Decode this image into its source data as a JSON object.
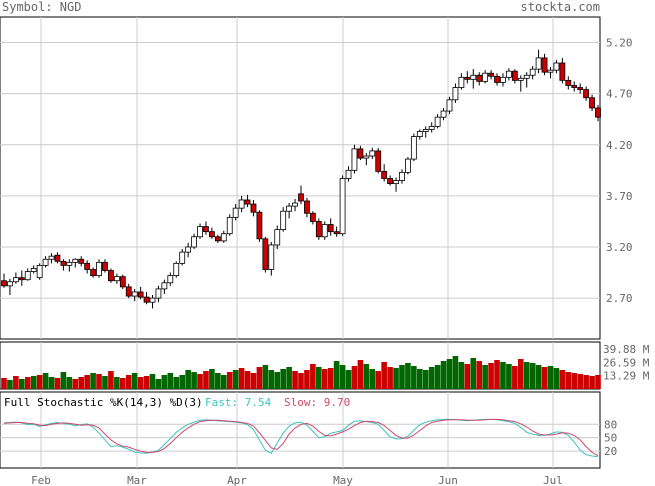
{
  "header": {
    "symbol_label": "Symbol: NGD",
    "site": "stockta.com"
  },
  "chart_data": [
    {
      "type": "candlestick",
      "title": "Symbol: NGD",
      "ylim": [
        2.3,
        5.45
      ],
      "y_ticks": [
        2.7,
        3.2,
        3.7,
        4.2,
        4.7,
        5.2
      ],
      "y_tick_labels": [
        "2.70",
        "3.20",
        "3.70",
        "4.20",
        "4.70",
        "5.20"
      ],
      "x_labels": [
        "Feb",
        "Mar",
        "Apr",
        "May",
        "Jun",
        "Jul"
      ],
      "ohlc": [
        [
          2.87,
          2.94,
          2.8,
          2.82
        ],
        [
          2.82,
          2.89,
          2.73,
          2.86
        ],
        [
          2.86,
          2.95,
          2.84,
          2.9
        ],
        [
          2.9,
          2.97,
          2.82,
          2.88
        ],
        [
          2.88,
          2.99,
          2.87,
          2.96
        ],
        [
          2.96,
          3.02,
          2.94,
          2.99
        ],
        [
          2.9,
          3.04,
          2.88,
          3.02
        ],
        [
          3.02,
          3.11,
          3.0,
          3.08
        ],
        [
          3.08,
          3.14,
          3.04,
          3.11
        ],
        [
          3.12,
          3.15,
          3.04,
          3.06
        ],
        [
          3.06,
          3.08,
          2.97,
          3.02
        ],
        [
          3.02,
          3.08,
          2.96,
          3.05
        ],
        [
          3.05,
          3.09,
          3.0,
          3.08
        ],
        [
          3.08,
          3.11,
          3.01,
          3.04
        ],
        [
          3.04,
          3.07,
          2.94,
          2.98
        ],
        [
          2.98,
          3.0,
          2.9,
          2.92
        ],
        [
          2.92,
          3.08,
          2.9,
          3.05
        ],
        [
          3.05,
          3.08,
          2.95,
          2.97
        ],
        [
          2.97,
          2.99,
          2.85,
          2.87
        ],
        [
          2.87,
          2.94,
          2.84,
          2.91
        ],
        [
          2.91,
          2.93,
          2.79,
          2.81
        ],
        [
          2.81,
          2.84,
          2.7,
          2.72
        ],
        [
          2.72,
          2.79,
          2.67,
          2.76
        ],
        [
          2.76,
          2.81,
          2.69,
          2.71
        ],
        [
          2.71,
          2.76,
          2.64,
          2.66
        ],
        [
          2.66,
          2.73,
          2.6,
          2.7
        ],
        [
          2.7,
          2.82,
          2.66,
          2.79
        ],
        [
          2.79,
          2.88,
          2.74,
          2.85
        ],
        [
          2.85,
          2.95,
          2.82,
          2.92
        ],
        [
          2.92,
          3.06,
          2.9,
          3.04
        ],
        [
          3.04,
          3.18,
          3.02,
          3.15
        ],
        [
          3.15,
          3.24,
          3.1,
          3.2
        ],
        [
          3.2,
          3.33,
          3.18,
          3.3
        ],
        [
          3.3,
          3.43,
          3.28,
          3.4
        ],
        [
          3.4,
          3.45,
          3.32,
          3.35
        ],
        [
          3.35,
          3.39,
          3.28,
          3.3
        ],
        [
          3.3,
          3.32,
          3.24,
          3.26
        ],
        [
          3.26,
          3.36,
          3.24,
          3.33
        ],
        [
          3.33,
          3.52,
          3.31,
          3.49
        ],
        [
          3.49,
          3.62,
          3.46,
          3.58
        ],
        [
          3.58,
          3.7,
          3.54,
          3.66
        ],
        [
          3.66,
          3.71,
          3.59,
          3.62
        ],
        [
          3.62,
          3.66,
          3.5,
          3.54
        ],
        [
          3.54,
          3.56,
          3.25,
          3.28
        ],
        [
          3.28,
          3.3,
          2.95,
          2.98
        ],
        [
          2.98,
          3.25,
          2.92,
          3.22
        ],
        [
          3.22,
          3.41,
          3.18,
          3.37
        ],
        [
          3.37,
          3.59,
          3.35,
          3.55
        ],
        [
          3.55,
          3.63,
          3.48,
          3.6
        ],
        [
          3.6,
          3.67,
          3.55,
          3.63
        ],
        [
          3.72,
          3.8,
          3.62,
          3.65
        ],
        [
          3.65,
          3.68,
          3.49,
          3.53
        ],
        [
          3.53,
          3.55,
          3.42,
          3.45
        ],
        [
          3.45,
          3.48,
          3.27,
          3.3
        ],
        [
          3.3,
          3.45,
          3.27,
          3.42
        ],
        [
          3.42,
          3.48,
          3.31,
          3.35
        ],
        [
          3.35,
          3.4,
          3.3,
          3.33
        ],
        [
          3.33,
          3.9,
          3.31,
          3.87
        ],
        [
          3.87,
          3.99,
          3.84,
          3.95
        ],
        [
          3.95,
          4.2,
          3.92,
          4.16
        ],
        [
          4.16,
          4.19,
          4.05,
          4.07
        ],
        [
          4.07,
          4.12,
          4.0,
          4.09
        ],
        [
          4.09,
          4.17,
          4.06,
          4.14
        ],
        [
          4.14,
          4.17,
          3.92,
          3.94
        ],
        [
          3.94,
          4.01,
          3.84,
          3.87
        ],
        [
          3.87,
          3.9,
          3.8,
          3.82
        ],
        [
          3.82,
          3.88,
          3.74,
          3.85
        ],
        [
          3.85,
          3.96,
          3.82,
          3.93
        ],
        [
          3.93,
          4.08,
          3.91,
          4.06
        ],
        [
          4.06,
          4.31,
          4.04,
          4.28
        ],
        [
          4.28,
          4.35,
          4.25,
          4.33
        ],
        [
          4.33,
          4.38,
          4.27,
          4.35
        ],
        [
          4.35,
          4.42,
          4.32,
          4.38
        ],
        [
          4.38,
          4.5,
          4.36,
          4.47
        ],
        [
          4.47,
          4.56,
          4.44,
          4.53
        ],
        [
          4.53,
          4.67,
          4.5,
          4.64
        ],
        [
          4.64,
          4.8,
          4.61,
          4.76
        ],
        [
          4.76,
          4.9,
          4.74,
          4.86
        ],
        [
          4.86,
          4.92,
          4.8,
          4.84
        ],
        [
          4.84,
          4.94,
          4.75,
          4.88
        ],
        [
          4.88,
          4.91,
          4.78,
          4.82
        ],
        [
          4.82,
          4.93,
          4.8,
          4.9
        ],
        [
          4.9,
          4.93,
          4.84,
          4.87
        ],
        [
          4.87,
          4.9,
          4.78,
          4.81
        ],
        [
          4.81,
          4.9,
          4.77,
          4.86
        ],
        [
          4.86,
          4.95,
          4.83,
          4.92
        ],
        [
          4.92,
          4.94,
          4.8,
          4.83
        ],
        [
          4.83,
          4.88,
          4.72,
          4.85
        ],
        [
          4.85,
          4.91,
          4.76,
          4.88
        ],
        [
          4.88,
          4.97,
          4.84,
          4.94
        ],
        [
          4.94,
          5.13,
          4.9,
          5.05
        ],
        [
          5.05,
          5.09,
          4.88,
          4.91
        ],
        [
          4.91,
          4.96,
          4.85,
          4.93
        ],
        [
          4.93,
          5.03,
          4.9,
          5.0
        ],
        [
          5.0,
          5.05,
          4.8,
          4.83
        ],
        [
          4.83,
          4.87,
          4.74,
          4.78
        ],
        [
          4.78,
          4.82,
          4.72,
          4.76
        ],
        [
          4.76,
          4.8,
          4.7,
          4.74
        ],
        [
          4.74,
          4.77,
          4.63,
          4.66
        ],
        [
          4.66,
          4.69,
          4.53,
          4.56
        ],
        [
          4.56,
          4.59,
          4.43,
          4.47
        ]
      ]
    },
    {
      "type": "bar",
      "y_tick_labels": [
        "39.88 M",
        "26.59 M",
        "13.29 M"
      ],
      "y_ticks": [
        39.88,
        26.59,
        13.29
      ],
      "ylim": [
        0,
        47
      ],
      "values": [
        11,
        9,
        13,
        10,
        12,
        13,
        14,
        16,
        12,
        11,
        17,
        12,
        10,
        12,
        14,
        16,
        15,
        13,
        18,
        12,
        11,
        14,
        16,
        12,
        13,
        15,
        10,
        14,
        16,
        12,
        14,
        19,
        17,
        15,
        18,
        20,
        16,
        14,
        17,
        19,
        21,
        18,
        16,
        22,
        24,
        19,
        17,
        20,
        22,
        18,
        16,
        19,
        25,
        22,
        20,
        21,
        28,
        24,
        19,
        23,
        29,
        25,
        20,
        18,
        27,
        22,
        21,
        24,
        26,
        23,
        20,
        19,
        22,
        24,
        28,
        30,
        33,
        27,
        25,
        31,
        28,
        24,
        26,
        29,
        27,
        25,
        23,
        30,
        27,
        26,
        24,
        22,
        23,
        21,
        19,
        17,
        16,
        15,
        14,
        13,
        14
      ],
      "colors": [
        "r",
        "g",
        "r",
        "g",
        "r",
        "g",
        "r",
        "g",
        "g",
        "r",
        "g",
        "g",
        "r",
        "r",
        "r",
        "g",
        "r",
        "g",
        "r",
        "g",
        "r",
        "r",
        "g",
        "r",
        "r",
        "g",
        "g",
        "g",
        "g",
        "g",
        "g",
        "g",
        "g",
        "r",
        "r",
        "g",
        "g",
        "g",
        "r",
        "g",
        "r",
        "r",
        "r",
        "r",
        "g",
        "g",
        "g",
        "g",
        "g",
        "r",
        "r",
        "r",
        "r",
        "g",
        "r",
        "r",
        "g",
        "g",
        "g",
        "r",
        "r",
        "g",
        "g",
        "r",
        "r",
        "r",
        "g",
        "g",
        "g",
        "g",
        "g",
        "g",
        "g",
        "g",
        "g",
        "g",
        "g",
        "g",
        "r",
        "g",
        "r",
        "g",
        "r",
        "r",
        "g",
        "g",
        "r",
        "r",
        "g",
        "g",
        "g",
        "r",
        "g",
        "g",
        "r",
        "r",
        "r",
        "r",
        "r",
        "r",
        "r"
      ]
    },
    {
      "type": "line",
      "title": "Full Stochastic %K(14,3) %D(3)",
      "fast_label": "Fast: 7.54",
      "slow_label": "Slow: 9.70",
      "ylim": [
        0,
        100
      ],
      "y_ticks": [
        80,
        50,
        20
      ],
      "y_tick_labels": [
        "80",
        "50",
        "20"
      ],
      "series": [
        {
          "color": "#3cc3c3",
          "values": [
            83,
            84,
            85,
            83,
            79,
            80,
            75,
            79,
            82,
            84,
            82,
            80,
            77,
            79,
            81,
            74,
            60,
            45,
            30,
            32,
            29,
            24,
            18,
            16,
            15,
            18,
            22,
            35,
            48,
            62,
            72,
            80,
            85,
            89,
            90,
            89,
            88,
            87,
            86,
            85,
            83,
            79,
            68,
            45,
            22,
            15,
            38,
            60,
            76,
            83,
            85,
            78,
            64,
            50,
            52,
            60,
            63,
            66,
            78,
            87,
            88,
            86,
            84,
            80,
            66,
            52,
            47,
            48,
            53,
            67,
            79,
            85,
            88,
            90,
            91,
            91,
            90,
            89,
            88,
            89,
            90,
            91,
            91,
            90,
            88,
            86,
            82,
            73,
            62,
            58,
            55,
            55,
            59,
            63,
            62,
            55,
            40,
            22,
            12,
            9,
            7.54
          ]
        },
        {
          "color": "#cc4a6a",
          "values": [
            82,
            83,
            84,
            84,
            82,
            81,
            78,
            77,
            80,
            82,
            83,
            82,
            80,
            78,
            79,
            78,
            72,
            58,
            45,
            36,
            31,
            29,
            24,
            20,
            17,
            17,
            19,
            26,
            37,
            50,
            62,
            72,
            80,
            86,
            88,
            89,
            89,
            88,
            87,
            86,
            84,
            82,
            76,
            61,
            44,
            27,
            24,
            37,
            58,
            72,
            80,
            82,
            76,
            64,
            55,
            54,
            58,
            63,
            69,
            77,
            84,
            87,
            86,
            84,
            77,
            66,
            55,
            49,
            49,
            56,
            66,
            76,
            84,
            87,
            89,
            90,
            90,
            90,
            89,
            89,
            89,
            90,
            91,
            91,
            90,
            88,
            86,
            81,
            74,
            65,
            58,
            56,
            56,
            58,
            61,
            60,
            55,
            45,
            30,
            17,
            9.7
          ]
        }
      ]
    }
  ]
}
